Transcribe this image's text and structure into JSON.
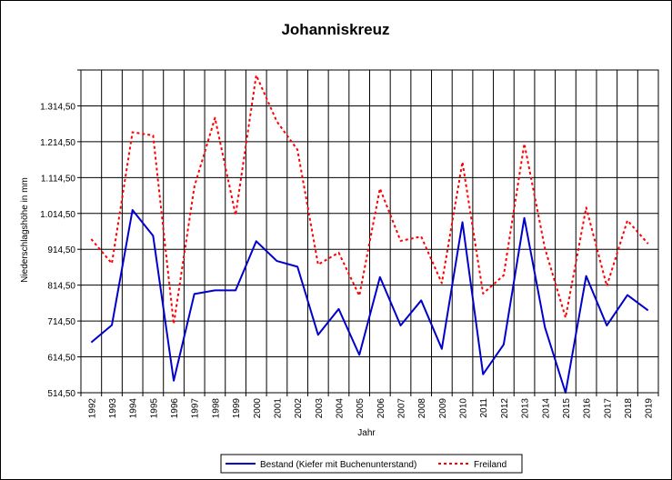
{
  "chart_data": {
    "type": "line",
    "title": "Johanniskreuz",
    "xlabel": "Jahr",
    "ylabel": "Niederschlagshöhe in mm",
    "categories": [
      "1992",
      "1993",
      "1994",
      "1995",
      "1996",
      "1997",
      "1998",
      "1999",
      "2000",
      "2001",
      "2002",
      "2003",
      "2004",
      "2005",
      "2006",
      "2007",
      "2008",
      "2009",
      "2010",
      "2011",
      "2012",
      "2013",
      "2014",
      "2015",
      "2016",
      "2017",
      "2018",
      "2019"
    ],
    "y_ticks": [
      "514,50",
      "614,50",
      "714,50",
      "814,50",
      "914,50",
      "1.014,50",
      "1.114,50",
      "1.214,50",
      "1.314,50"
    ],
    "ylim": [
      514.5,
      1414.5
    ],
    "grid": true,
    "legend_position": "bottom",
    "series": [
      {
        "name": "Bestand (Kiefer mit Buchenunterstand)",
        "color": "#0000cc",
        "style": "solid",
        "values": [
          655,
          703,
          1024,
          952,
          548,
          790,
          800,
          800,
          937,
          882,
          866,
          676,
          748,
          620,
          837,
          702,
          772,
          637,
          990,
          566,
          649,
          1002,
          697,
          514.5,
          840,
          702,
          787,
          744
        ]
      },
      {
        "name": "Freiland",
        "color": "#ff0000",
        "style": "dotted",
        "values": [
          943,
          875,
          1241,
          1232,
          706,
          1089,
          1281,
          1010,
          1400,
          1271,
          1192,
          872,
          905,
          785,
          1084,
          938,
          950,
          820,
          1158,
          791,
          842,
          1209,
          917,
          724,
          1031,
          812,
          995,
          930
        ]
      }
    ]
  }
}
